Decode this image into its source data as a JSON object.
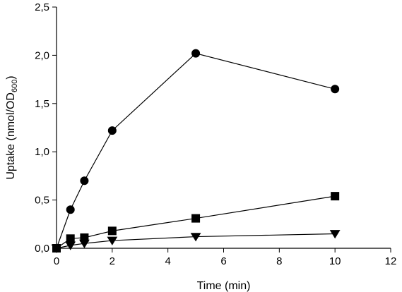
{
  "chart_data": {
    "type": "scatter",
    "title": "",
    "xlabel": "Time (min)",
    "ylabel": {
      "main": "Uptake (nmol/OD",
      "subscript": "600",
      "close": ")"
    },
    "xlim": [
      0,
      12
    ],
    "ylim": [
      0,
      2.5
    ],
    "xticks": [
      0,
      2,
      4,
      6,
      8,
      10,
      12
    ],
    "yticks": [
      0,
      0.5,
      1.0,
      1.5,
      2.0,
      2.5
    ],
    "xtick_labels": [
      "0",
      "2",
      "4",
      "6",
      "8",
      "10",
      "12"
    ],
    "ytick_labels": [
      "0,0",
      "0,5",
      "1,0",
      "1,5",
      "2,0",
      "2,5"
    ],
    "grid": false,
    "series": [
      {
        "marker": "circle",
        "x": [
          0,
          0.5,
          1,
          2,
          5,
          10
        ],
        "y": [
          0,
          0.4,
          0.7,
          1.22,
          2.02,
          1.65
        ]
      },
      {
        "marker": "square",
        "x": [
          0,
          0.5,
          1,
          2,
          5,
          10
        ],
        "y": [
          0,
          0.1,
          0.11,
          0.18,
          0.31,
          0.54
        ]
      },
      {
        "marker": "triangle-down",
        "x": [
          0,
          0.5,
          1,
          2,
          5,
          10
        ],
        "y": [
          0,
          0.03,
          0.05,
          0.08,
          0.12,
          0.15
        ]
      }
    ]
  }
}
